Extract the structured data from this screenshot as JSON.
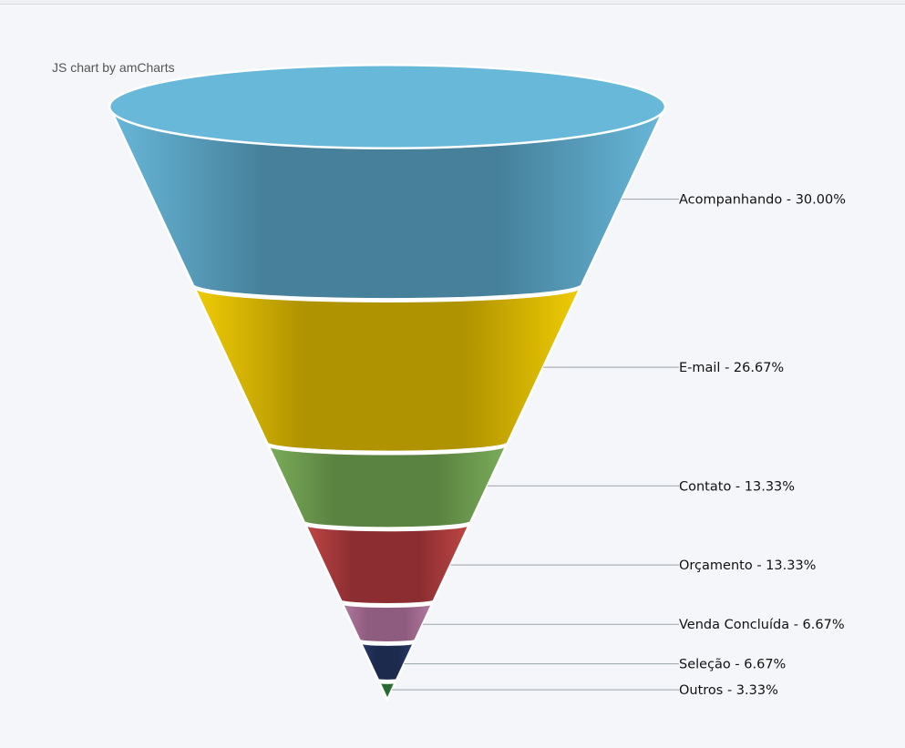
{
  "credit": "JS chart by amCharts",
  "chart_data": {
    "type": "funnel",
    "title": "",
    "segments": [
      {
        "name": "Acompanhando",
        "percent": 30.0,
        "label": "Acompanhando - 30.00%",
        "color_light": "#68b8da",
        "color_dark": "#46809a"
      },
      {
        "name": "E-mail",
        "percent": 26.67,
        "label": "E-mail - 26.67%",
        "color_light": "#f0cc05",
        "color_dark": "#b09300"
      },
      {
        "name": "Contato",
        "percent": 13.33,
        "label": "Contato - 13.33%",
        "color_light": "#7aac5a",
        "color_dark": "#5a8240"
      },
      {
        "name": "Orçamento",
        "percent": 13.33,
        "label": "Orçamento - 13.33%",
        "color_light": "#c04646",
        "color_dark": "#8c2e31"
      },
      {
        "name": "Venda Concluída",
        "percent": 6.67,
        "label": "Venda Concluída - 6.67%",
        "color_light": "#b47aa2",
        "color_dark": "#8e5c7e"
      },
      {
        "name": "Seleção",
        "percent": 6.67,
        "label": "Seleção - 6.67%",
        "color_light": "#2a3c6a",
        "color_dark": "#1c2a4e"
      },
      {
        "name": "Outros",
        "percent": 3.33,
        "label": "Outros - 3.33%",
        "color_light": "#3e8a46",
        "color_dark": "#2a6a32"
      }
    ],
    "top_cap_color": "#68b8da",
    "connector_color": "#9aa2aa"
  }
}
